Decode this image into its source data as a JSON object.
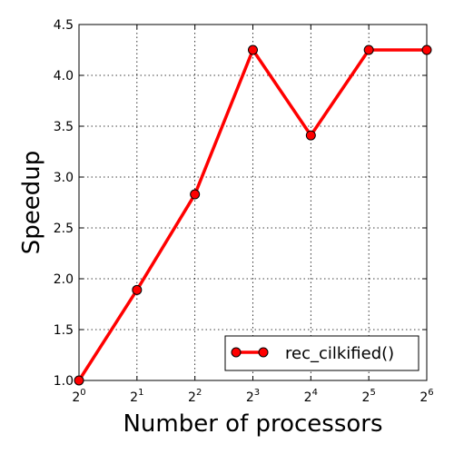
{
  "chart_data": {
    "type": "line",
    "title": "",
    "xlabel": "Number of processors",
    "ylabel": "Speedup",
    "x_scale": "log2",
    "x_tick_base": "2",
    "x_tick_exponents": [
      "0",
      "1",
      "2",
      "3",
      "4",
      "5",
      "6"
    ],
    "xlim": [
      1,
      64
    ],
    "ylim": [
      1.0,
      4.5
    ],
    "y_ticks": [
      "1.0",
      "1.5",
      "2.0",
      "2.5",
      "3.0",
      "3.5",
      "4.0",
      "4.5"
    ],
    "grid": true,
    "legend_position": "lower-right",
    "series": [
      {
        "name": "rec_cilkified()",
        "color": "#ff0000",
        "marker": "circle",
        "x": [
          1,
          2,
          4,
          8,
          16,
          32,
          64
        ],
        "y": [
          1.0,
          1.89,
          2.83,
          4.25,
          3.41,
          4.25,
          4.25
        ]
      }
    ]
  }
}
